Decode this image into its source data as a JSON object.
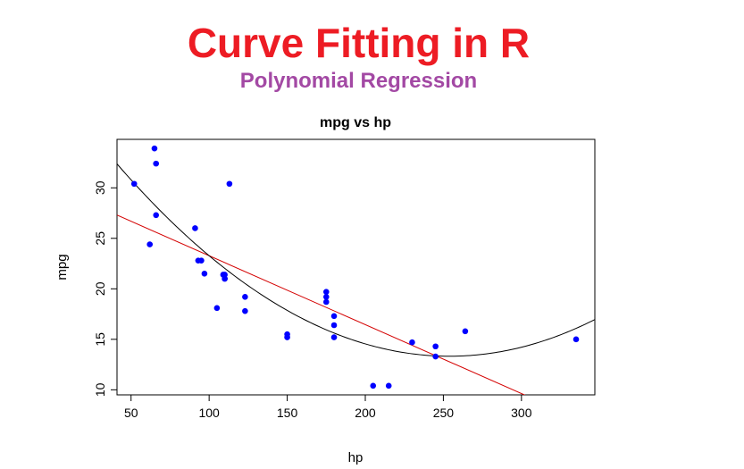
{
  "header": {
    "title": "Curve Fitting in R",
    "subtitle": "Polynomial Regression"
  },
  "colors": {
    "title": "#ed1c24",
    "subtitle": "#a349a4",
    "points": "#0000ff",
    "linear_fit": "#d40000",
    "poly_fit": "#000000"
  },
  "chart_data": {
    "type": "scatter",
    "title": "mpg vs hp",
    "xlabel": "hp",
    "ylabel": "mpg",
    "xlim": [
      41,
      347
    ],
    "ylim": [
      9.5,
      34.8
    ],
    "xticks": [
      50,
      100,
      150,
      200,
      250,
      300
    ],
    "yticks": [
      10,
      15,
      20,
      25,
      30
    ],
    "grid": false,
    "points": [
      {
        "x": 110,
        "y": 21.0
      },
      {
        "x": 110,
        "y": 21.0
      },
      {
        "x": 93,
        "y": 22.8
      },
      {
        "x": 110,
        "y": 21.4
      },
      {
        "x": 175,
        "y": 18.7
      },
      {
        "x": 105,
        "y": 18.1
      },
      {
        "x": 245,
        "y": 14.3
      },
      {
        "x": 62,
        "y": 24.4
      },
      {
        "x": 95,
        "y": 22.8
      },
      {
        "x": 123,
        "y": 19.2
      },
      {
        "x": 123,
        "y": 17.8
      },
      {
        "x": 180,
        "y": 16.4
      },
      {
        "x": 180,
        "y": 17.3
      },
      {
        "x": 180,
        "y": 15.2
      },
      {
        "x": 205,
        "y": 10.4
      },
      {
        "x": 215,
        "y": 10.4
      },
      {
        "x": 230,
        "y": 14.7
      },
      {
        "x": 66,
        "y": 32.4
      },
      {
        "x": 52,
        "y": 30.4
      },
      {
        "x": 65,
        "y": 33.9
      },
      {
        "x": 97,
        "y": 21.5
      },
      {
        "x": 150,
        "y": 15.5
      },
      {
        "x": 150,
        "y": 15.2
      },
      {
        "x": 245,
        "y": 13.3
      },
      {
        "x": 175,
        "y": 19.2
      },
      {
        "x": 66,
        "y": 27.3
      },
      {
        "x": 91,
        "y": 26.0
      },
      {
        "x": 113,
        "y": 30.4
      },
      {
        "x": 264,
        "y": 15.8
      },
      {
        "x": 175,
        "y": 19.7
      },
      {
        "x": 335,
        "y": 15.0
      },
      {
        "x": 109,
        "y": 21.4
      }
    ],
    "fits": [
      {
        "kind": "linear",
        "intercept": 30.099,
        "slope": -0.06823
      },
      {
        "kind": "quadratic",
        "coefficients": [
          40.40912,
          -0.21331,
          0.00042
        ]
      }
    ]
  }
}
